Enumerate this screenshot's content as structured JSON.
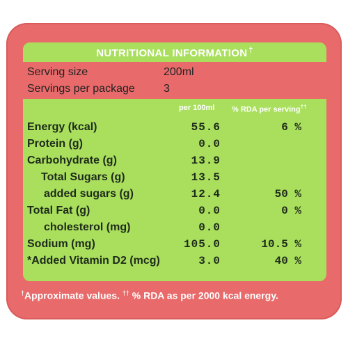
{
  "header": {
    "title": "NUTRITIONAL INFORMATION",
    "title_mark": "†"
  },
  "serving": {
    "size_label": "Serving size",
    "size_value": "200ml",
    "per_package_label": "Servings per package",
    "per_package_value": "3"
  },
  "table": {
    "col_per100": "per 100ml",
    "col_rda": "% RDA per serving",
    "col_rda_mark": "††",
    "rows": [
      {
        "name": "Energy (kcal)",
        "per100": "55.6",
        "rda": "6 %"
      },
      {
        "name": "Protein (g)",
        "per100": "0.0",
        "rda": ""
      },
      {
        "name": "Carbohydrate (g)",
        "per100": "13.9",
        "rda": ""
      },
      {
        "name": "Total Sugars (g)",
        "per100": "13.5",
        "rda": ""
      },
      {
        "name": "added sugars (g)",
        "per100": "12.4",
        "rda": "50 %"
      },
      {
        "name": "Total Fat (g)",
        "per100": "0.0",
        "rda": "0 %"
      },
      {
        "name": "cholesterol (mg)",
        "per100": "0.0",
        "rda": ""
      },
      {
        "name": "Sodium (mg)",
        "per100": "105.0",
        "rda": "10.5 %"
      },
      {
        "name": "*Added Vitamin D2 (mcg)",
        "per100": "3.0",
        "rda": "40 %"
      }
    ]
  },
  "footnote": {
    "mark1": "†",
    "text1": "Approximate values.",
    "mark2": "††",
    "text2": "% RDA as per 2000 kcal energy."
  },
  "colors": {
    "label_red": "#e86a6a",
    "label_green": "#a9df5d"
  }
}
